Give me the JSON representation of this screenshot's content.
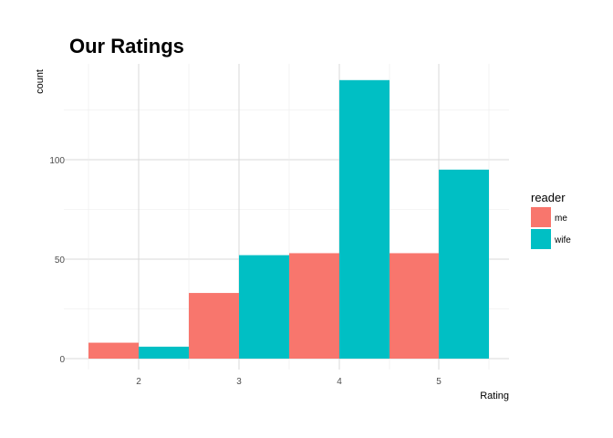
{
  "chart_data": {
    "type": "bar",
    "title": "Our Ratings",
    "xlabel": "Rating",
    "ylabel": "count",
    "categories": [
      "2",
      "3",
      "4",
      "5"
    ],
    "series": [
      {
        "name": "me",
        "color": "#F8766D",
        "values": [
          8,
          33,
          53,
          53
        ]
      },
      {
        "name": "wife",
        "color": "#00BFC4",
        "values": [
          6,
          52,
          140,
          95
        ]
      }
    ],
    "ylim": [
      0,
      148
    ],
    "yticks": [
      0,
      50,
      100
    ],
    "grid": true,
    "legend": {
      "title": "reader",
      "placement": "right"
    }
  }
}
